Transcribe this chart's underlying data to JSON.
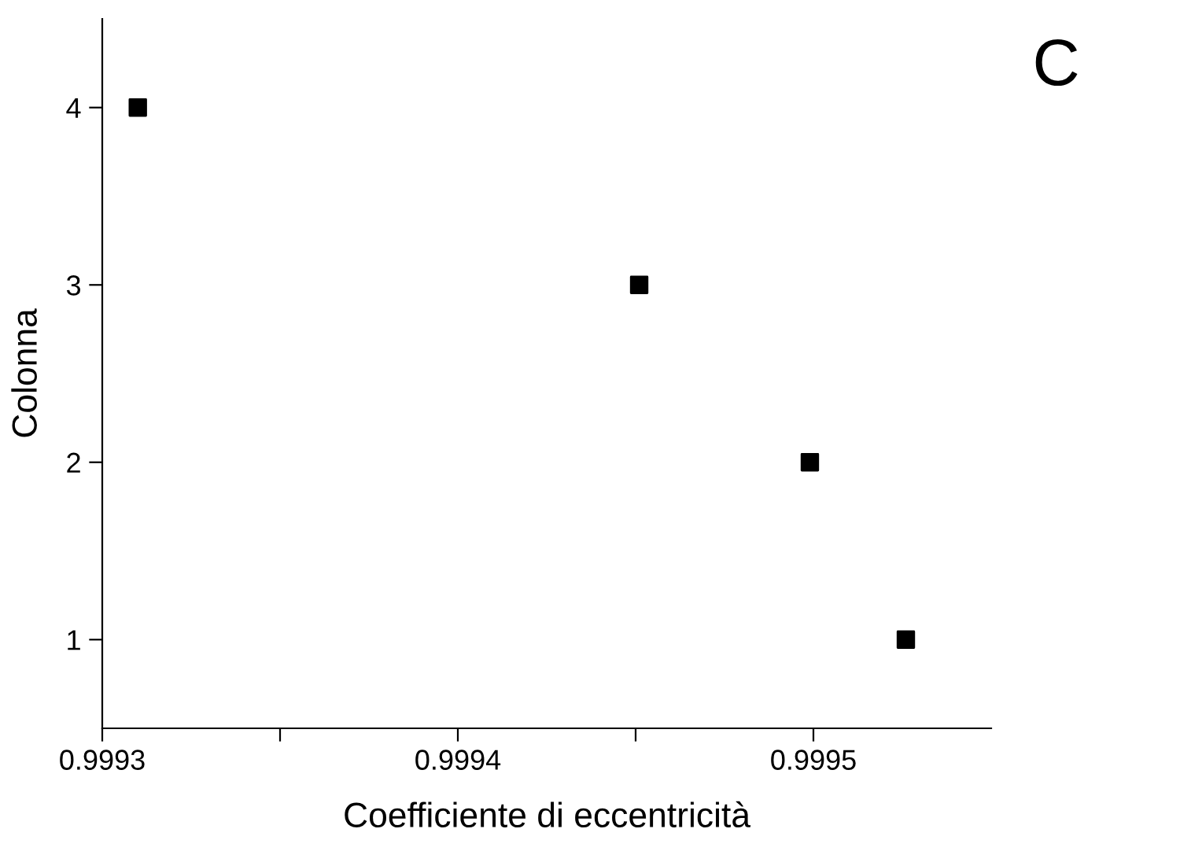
{
  "chart_data": {
    "type": "scatter",
    "xlabel": "Coefficiente di eccentricità",
    "ylabel": "Colonna",
    "x": [
      0.99931,
      0.999451,
      0.999499,
      0.999526
    ],
    "values": [
      4,
      3,
      2,
      1
    ],
    "color": "#000000",
    "marker": "square",
    "xlim": [
      0.9993,
      0.99955
    ],
    "ylim": [
      0.5,
      4.5
    ],
    "xticks": [
      0.9993,
      {
        "value": 0.99935,
        "label": null
      },
      0.9994,
      {
        "value": 0.99945,
        "label": null
      },
      0.9995
    ],
    "yticks": [
      1,
      2,
      3,
      4
    ],
    "grid": false,
    "legend": false,
    "annotations": [
      "C"
    ]
  }
}
